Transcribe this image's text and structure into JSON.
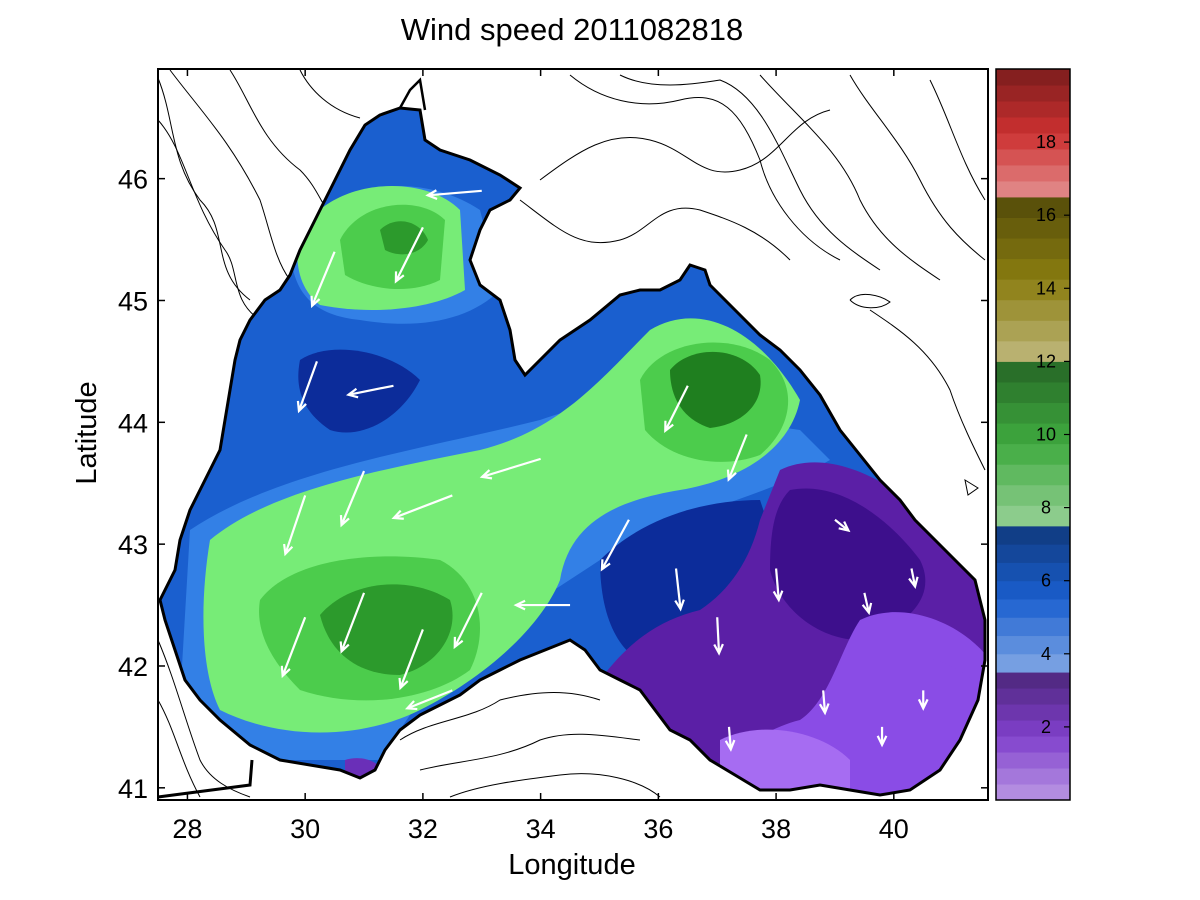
{
  "chart_data": {
    "type": "contour_map",
    "title": "Wind speed 2011082818",
    "xlabel": "Longitude",
    "ylabel": "Latitude",
    "xlim": [
      27.5,
      41.6
    ],
    "ylim": [
      40.9,
      46.9
    ],
    "xticks": [
      28,
      30,
      32,
      34,
      36,
      38,
      40
    ],
    "yticks": [
      41,
      42,
      43,
      44,
      45,
      46
    ],
    "colorbar": {
      "range": [
        0,
        20
      ],
      "ticks": [
        2,
        4,
        6,
        8,
        10,
        12,
        14,
        16,
        18
      ],
      "bands": [
        {
          "from": 0,
          "to": 3.5,
          "color": "#8040cc"
        },
        {
          "from": 3.5,
          "to": 7.5,
          "color": "#1a5fcf"
        },
        {
          "from": 7.5,
          "to": 12,
          "color": "#3faa3f"
        },
        {
          "from": 12,
          "to": 16.5,
          "color": "#8a7d10"
        },
        {
          "from": 16.5,
          "to": 20,
          "color": "#cc3030"
        }
      ]
    },
    "speed_zones": [
      {
        "name": "purple-east",
        "speed": 2.5,
        "lon": [
          36.5,
          41.5
        ],
        "lat": [
          41.1,
          43.6
        ]
      },
      {
        "name": "blue-north",
        "speed": 5.5,
        "lon": [
          29.5,
          33
        ],
        "lat": [
          43.7,
          44.9
        ]
      },
      {
        "name": "green-nw",
        "speed": 9,
        "lon": [
          29.5,
          33.8
        ],
        "lat": [
          45.1,
          46.1
        ]
      },
      {
        "name": "green-sw",
        "speed": 9.5,
        "lon": [
          28.9,
          33.7
        ],
        "lat": [
          41.4,
          43.2
        ]
      },
      {
        "name": "green-ne",
        "speed": 10.5,
        "lon": [
          35,
          38.8
        ],
        "lat": [
          43.5,
          44.9
        ]
      }
    ],
    "vectors": [
      {
        "lon": 30.0,
        "lat": 42.4,
        "u": -2.5,
        "v": -6.5
      },
      {
        "lon": 31.0,
        "lat": 42.6,
        "u": -2.5,
        "v": -6.5
      },
      {
        "lon": 32.0,
        "lat": 42.3,
        "u": -2.5,
        "v": -6.5
      },
      {
        "lon": 33.0,
        "lat": 42.6,
        "u": -3.0,
        "v": -6.0
      },
      {
        "lon": 30.0,
        "lat": 43.4,
        "u": -2.2,
        "v": -6.5
      },
      {
        "lon": 31.0,
        "lat": 43.6,
        "u": -2.5,
        "v": -6.0
      },
      {
        "lon": 32.5,
        "lat": 43.4,
        "u": -6.5,
        "v": -2.5
      },
      {
        "lon": 34.0,
        "lat": 43.7,
        "u": -6.5,
        "v": -2.0
      },
      {
        "lon": 35.5,
        "lat": 43.2,
        "u": -3.0,
        "v": -5.5
      },
      {
        "lon": 36.5,
        "lat": 44.3,
        "u": -2.5,
        "v": -5.0
      },
      {
        "lon": 37.5,
        "lat": 43.9,
        "u": -2.0,
        "v": -5.0
      },
      {
        "lon": 30.2,
        "lat": 44.5,
        "u": -2.0,
        "v": -5.5
      },
      {
        "lon": 31.5,
        "lat": 44.3,
        "u": -5.0,
        "v": -1.0
      },
      {
        "lon": 30.5,
        "lat": 45.4,
        "u": -2.5,
        "v": -6.0
      },
      {
        "lon": 32.0,
        "lat": 45.6,
        "u": -3.0,
        "v": -6.0
      },
      {
        "lon": 33.0,
        "lat": 45.9,
        "u": -6.0,
        "v": -0.5
      },
      {
        "lon": 32.5,
        "lat": 41.8,
        "u": -5.0,
        "v": -2.0
      },
      {
        "lon": 34.5,
        "lat": 42.5,
        "u": -6.0,
        "v": 0.0
      },
      {
        "lon": 36.3,
        "lat": 42.8,
        "u": 0.5,
        "v": -4.5
      },
      {
        "lon": 37.0,
        "lat": 42.4,
        "u": 0.2,
        "v": -4.0
      },
      {
        "lon": 38.0,
        "lat": 42.8,
        "u": 0.3,
        "v": -3.5
      },
      {
        "lon": 38.8,
        "lat": 41.8,
        "u": 0.2,
        "v": -2.5
      },
      {
        "lon": 39.5,
        "lat": 42.6,
        "u": 0.5,
        "v": -2.2
      },
      {
        "lon": 40.3,
        "lat": 42.8,
        "u": 0.4,
        "v": -2.0
      },
      {
        "lon": 39.0,
        "lat": 43.2,
        "u": 1.5,
        "v": -1.2
      },
      {
        "lon": 40.5,
        "lat": 41.8,
        "u": 0.0,
        "v": -2.0
      },
      {
        "lon": 39.8,
        "lat": 41.5,
        "u": 0.0,
        "v": -2.0
      },
      {
        "lon": 37.2,
        "lat": 41.5,
        "u": 0.2,
        "v": -2.5
      }
    ]
  }
}
